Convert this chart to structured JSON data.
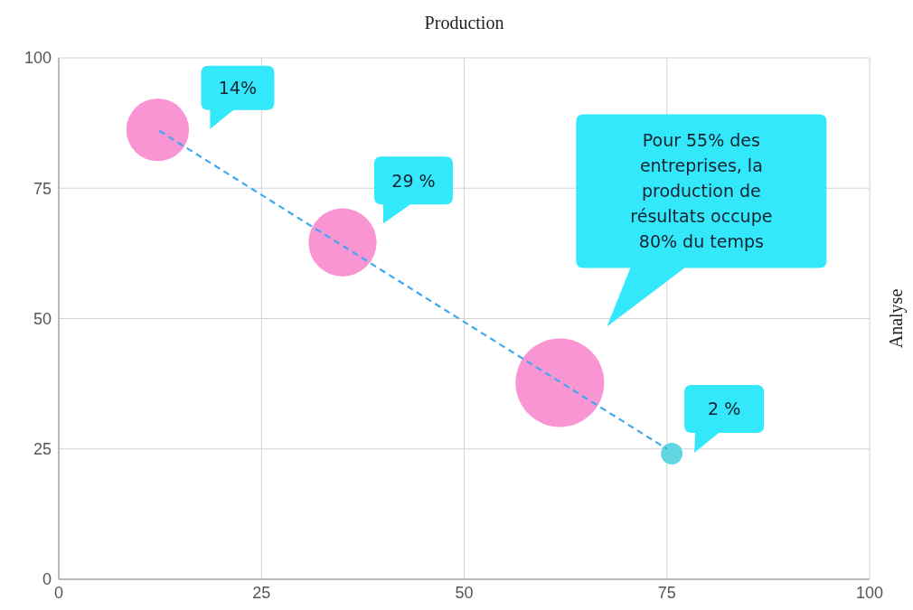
{
  "chart_data": {
    "type": "bubble",
    "xlabel": "Production",
    "ylabel": "Analyse",
    "xlim": [
      0,
      100
    ],
    "xticks": [
      0,
      25,
      50,
      75,
      100
    ],
    "ylim": [
      0,
      100
    ],
    "yticks": [
      0,
      25,
      50,
      75,
      100
    ],
    "grid": true,
    "series": [
      {
        "x": [
          12.2,
          35.0,
          61.8,
          75.6
        ],
        "values": [
          86.2,
          64.6,
          37.7,
          24.1
        ],
        "sizes": [
          0.5,
          0.59,
          1,
          0.06
        ],
        "colors": [
          "#f995d2",
          "#f995d2",
          "#f995d2",
          "#5fd6e0"
        ]
      },
      {
        "type": "line",
        "x": [
          12.4,
          75.0
        ],
        "values": [
          86,
          25
        ],
        "color": "#3ea8f0",
        "line_style": "dashed"
      }
    ],
    "annotations": [
      "14%",
      "29 %",
      "Pour 55% des entreprises, la production de résultats occupe 80% du temps",
      "2 %"
    ]
  }
}
